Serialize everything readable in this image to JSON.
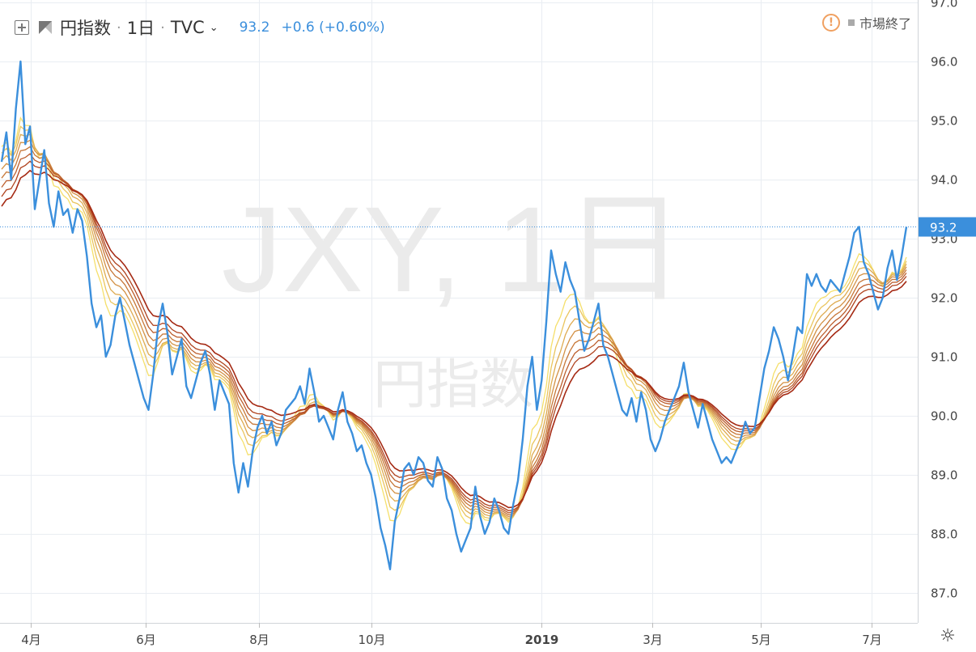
{
  "header": {
    "symbol_name": "円指数",
    "interval": "1日",
    "source": "TVC",
    "price": "93.2",
    "change": "+0.6 (+0.60%)",
    "market_status": "市場終了"
  },
  "colors": {
    "price_line": "#3b8fdc",
    "ribbon_light": "#f5df6a",
    "ribbon_dark": "#a52a14",
    "grid": "#e6ebf1",
    "price_tag": "#3b8fdc"
  },
  "chart_data": {
    "type": "line",
    "watermark": {
      "title": "JXY, 1日",
      "subtitle": "円指数"
    },
    "x_ticks": [
      "4月",
      "6月",
      "8月",
      "10月",
      "2019",
      "3月",
      "5月",
      "7月"
    ],
    "y_ticks": [
      "87.0",
      "88.0",
      "89.0",
      "90.0",
      "91.0",
      "92.0",
      "93.0",
      "94.0",
      "95.0",
      "96.0",
      "97.0"
    ],
    "ylim": [
      86.75,
      97.1
    ],
    "current_price_label": "93.2",
    "current_price": 93.2,
    "grid": true,
    "series": [
      {
        "values": [
          94.3,
          94.8,
          94.0,
          95.2,
          96.0,
          94.6,
          94.9,
          93.5,
          94.0,
          94.5,
          93.6,
          93.2,
          93.8,
          93.4,
          93.5,
          93.1,
          93.5,
          93.3,
          92.7,
          91.9,
          91.5,
          91.7,
          91.0,
          91.2,
          91.7,
          92.0,
          91.6,
          91.2,
          90.9,
          90.6,
          90.3,
          90.1,
          90.7,
          91.5,
          91.9,
          91.4,
          90.7,
          91.0,
          91.3,
          90.5,
          90.3,
          90.6,
          90.9,
          91.1,
          90.7,
          90.1,
          90.6,
          90.4,
          90.2,
          89.2,
          88.7,
          89.2,
          88.8,
          89.4,
          89.8,
          90.0,
          89.7,
          89.9,
          89.5,
          89.7,
          90.1,
          90.2,
          90.3,
          90.5,
          90.2,
          90.8,
          90.4,
          89.9,
          90.0,
          89.8,
          89.6,
          90.1,
          90.4,
          89.9,
          89.7,
          89.4,
          89.5,
          89.2,
          89.0,
          88.6,
          88.1,
          87.8,
          87.4,
          88.2,
          88.6,
          89.1,
          89.2,
          89.0,
          89.3,
          89.2,
          88.9,
          88.8,
          89.3,
          89.1,
          88.6,
          88.4,
          88.0,
          87.7,
          87.9,
          88.1,
          88.8,
          88.3,
          88.0,
          88.2,
          88.6,
          88.4,
          88.1,
          88.0,
          88.5,
          88.9,
          89.6,
          90.5,
          91.0,
          90.1,
          90.6,
          91.6,
          92.8,
          92.4,
          92.1,
          92.6,
          92.3,
          92.1,
          91.6,
          91.1,
          91.3,
          91.6,
          91.9,
          91.2,
          91.0,
          90.7,
          90.4,
          90.1,
          90.0,
          90.3,
          89.9,
          90.4,
          90.1,
          89.6,
          89.4,
          89.6,
          89.9,
          90.1,
          90.3,
          90.5,
          90.9,
          90.4,
          90.1,
          89.8,
          90.2,
          89.9,
          89.6,
          89.4,
          89.2,
          89.3,
          89.2,
          89.4,
          89.6,
          89.9,
          89.7,
          89.8,
          90.3,
          90.8,
          91.1,
          91.5,
          91.3,
          91.0,
          90.6,
          91.0,
          91.5,
          91.4,
          92.4,
          92.2,
          92.4,
          92.2,
          92.1,
          92.3,
          92.2,
          92.1,
          92.4,
          92.7,
          93.1,
          93.2,
          92.6,
          92.4,
          92.1,
          91.8,
          92.0,
          92.5,
          92.8,
          92.3,
          92.7,
          93.2
        ]
      }
    ]
  }
}
